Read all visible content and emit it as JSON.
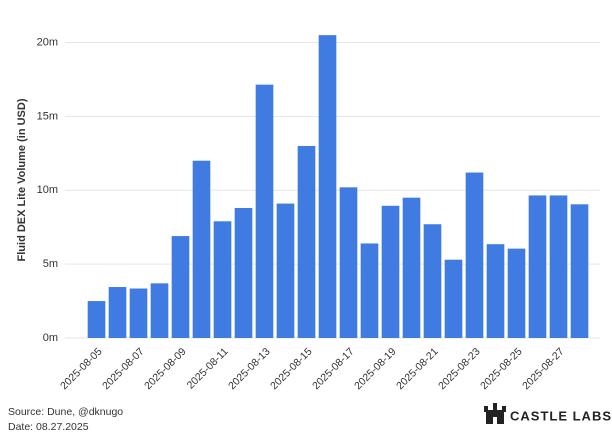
{
  "chart_data": {
    "type": "bar",
    "y_axis_label": "Fluid DEX Lite Volume (in USD)",
    "categories": [
      "2025-08-05",
      null,
      "2025-08-07",
      null,
      "2025-08-09",
      null,
      "2025-08-11",
      null,
      "2025-08-13",
      null,
      "2025-08-15",
      null,
      "2025-08-17",
      null,
      "2025-08-19",
      null,
      "2025-08-21",
      null,
      "2025-08-23",
      null,
      "2025-08-25",
      null,
      "2025-08-27",
      null
    ],
    "values": [
      2.5,
      3.45,
      3.35,
      3.7,
      6.9,
      12.0,
      7.9,
      8.8,
      17.15,
      9.1,
      13.0,
      20.5,
      10.2,
      6.4,
      8.95,
      9.5,
      7.7,
      5.3,
      11.2,
      6.35,
      6.05,
      9.65,
      9.65,
      9.05
    ],
    "color": "#3f7be0",
    "ylim": [
      0,
      22
    ],
    "yticks": [
      {
        "value": 0,
        "label": "0m"
      },
      {
        "value": 5,
        "label": "5m"
      },
      {
        "value": 10,
        "label": "10m"
      },
      {
        "value": 15,
        "label": "15m"
      },
      {
        "value": 20,
        "label": "20m"
      }
    ],
    "grid": true,
    "source": "Source: Dune, @dknugo",
    "date": "Date: 08.27.2025",
    "brand": "CASTLE LABS"
  }
}
